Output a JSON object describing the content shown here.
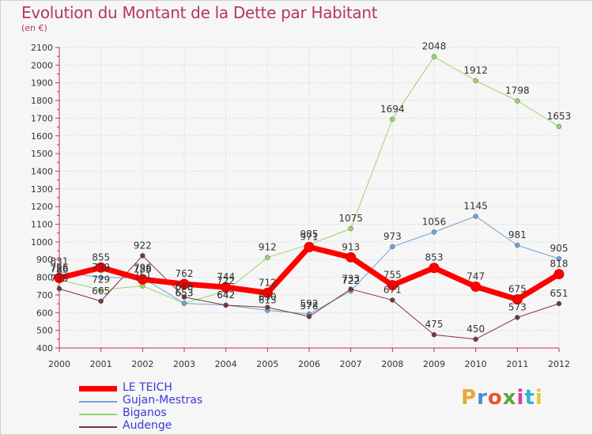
{
  "title": "Evolution du Montant de la Dette par Habitant",
  "subtitle": "(en €)",
  "logo": {
    "text": "Proxiti",
    "colors": [
      "#e8a83a",
      "#4c8bd4",
      "#e05a2b",
      "#5aa83a",
      "#d43ea3",
      "#3ab0d4",
      "#e8c83a"
    ]
  },
  "chart_data": {
    "type": "line",
    "x": [
      "2000",
      "2001",
      "2002",
      "2003",
      "2004",
      "2005",
      "2006",
      "2007",
      "2008",
      "2009",
      "2010",
      "2011",
      "2012"
    ],
    "ylim": [
      400,
      2100
    ],
    "yticks": [
      400,
      500,
      600,
      700,
      800,
      900,
      1000,
      1100,
      1200,
      1300,
      1400,
      1500,
      1600,
      1700,
      1800,
      1900,
      2000,
      2100
    ],
    "grid": true,
    "legend_position": "bottom-left",
    "series": [
      {
        "name": "LE TEICH",
        "color": "#ff0000",
        "values": [
          796,
          855,
          788,
          762,
          744,
          712,
          971,
          913,
          755,
          853,
          747,
          675,
          818
        ],
        "width": 7,
        "labels": [
          796,
          855,
          788,
          762,
          744,
          712,
          971,
          913,
          755,
          853,
          747,
          675,
          818
        ]
      },
      {
        "name": "Gujan-Mestras",
        "color": "#6fa3d8",
        "values": [
          831,
          799,
          796,
          653,
          642,
          613,
          592,
          722,
          973,
          1056,
          1145,
          981,
          905
        ],
        "width": 1,
        "labels": [
          831,
          799,
          796,
          653,
          642,
          613,
          592,
          722,
          973,
          1056,
          1145,
          981,
          905
        ]
      },
      {
        "name": "Biganos",
        "color": "#99d46a",
        "values": [
          786,
          729,
          751,
          653,
          722,
          912,
          985,
          1075,
          1694,
          2048,
          1912,
          1798,
          1653
        ],
        "width": 1,
        "labels": [
          786,
          729,
          751,
          653,
          722,
          912,
          985,
          1075,
          1694,
          2048,
          1912,
          1798,
          1653
        ]
      },
      {
        "name": "Audenge",
        "color": "#7a3636",
        "values": [
          735,
          665,
          922,
          688,
          642,
          630,
          578,
          733,
          671,
          475,
          450,
          573,
          651
        ],
        "width": 1,
        "labels": [
          735,
          665,
          922,
          688,
          642,
          630,
          578,
          733,
          671,
          475,
          450,
          573,
          651
        ]
      }
    ]
  }
}
